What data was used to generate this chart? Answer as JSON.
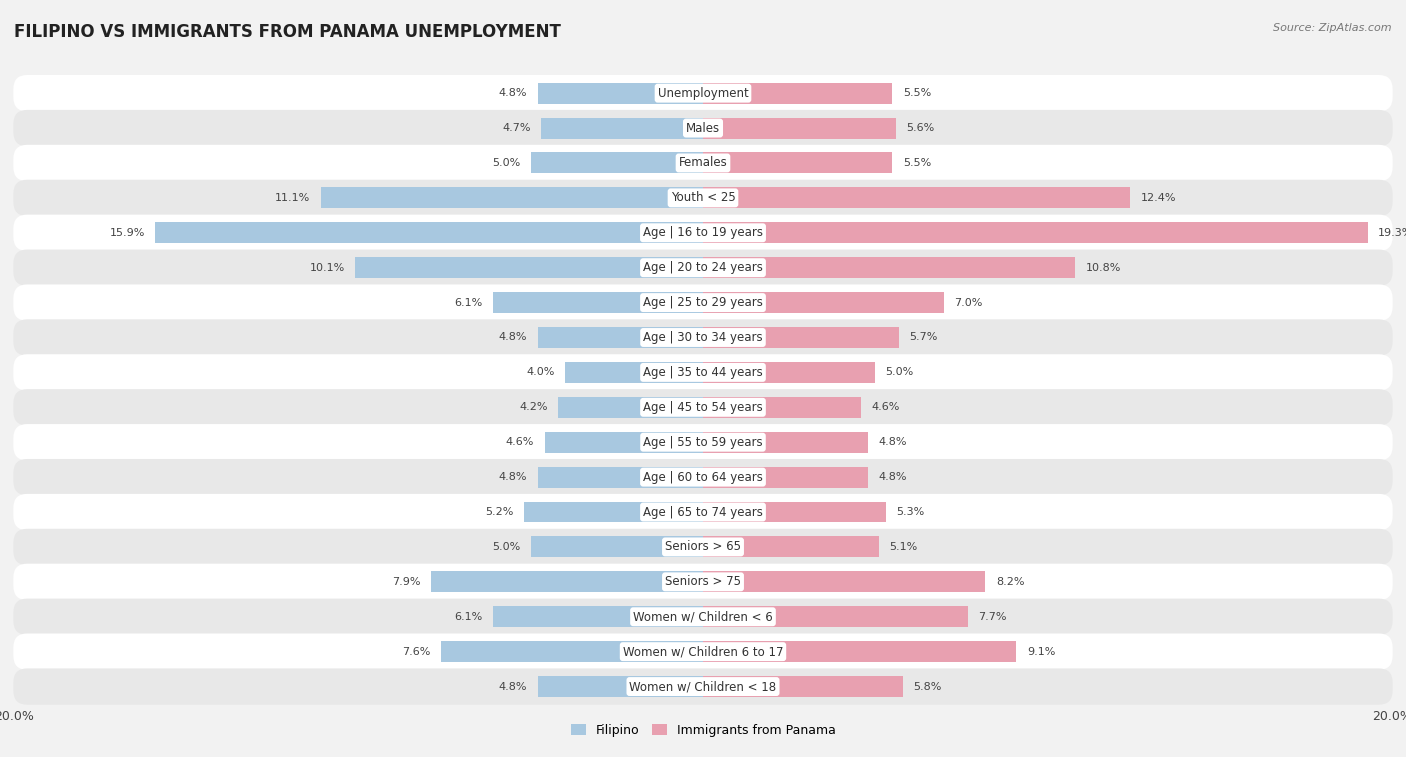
{
  "title": "FILIPINO VS IMMIGRANTS FROM PANAMA UNEMPLOYMENT",
  "source": "Source: ZipAtlas.com",
  "categories": [
    "Unemployment",
    "Males",
    "Females",
    "Youth < 25",
    "Age | 16 to 19 years",
    "Age | 20 to 24 years",
    "Age | 25 to 29 years",
    "Age | 30 to 34 years",
    "Age | 35 to 44 years",
    "Age | 45 to 54 years",
    "Age | 55 to 59 years",
    "Age | 60 to 64 years",
    "Age | 65 to 74 years",
    "Seniors > 65",
    "Seniors > 75",
    "Women w/ Children < 6",
    "Women w/ Children 6 to 17",
    "Women w/ Children < 18"
  ],
  "filipino_values": [
    4.8,
    4.7,
    5.0,
    11.1,
    15.9,
    10.1,
    6.1,
    4.8,
    4.0,
    4.2,
    4.6,
    4.8,
    5.2,
    5.0,
    7.9,
    6.1,
    7.6,
    4.8
  ],
  "panama_values": [
    5.5,
    5.6,
    5.5,
    12.4,
    19.3,
    10.8,
    7.0,
    5.7,
    5.0,
    4.6,
    4.8,
    4.8,
    5.3,
    5.1,
    8.2,
    7.7,
    9.1,
    5.8
  ],
  "filipino_color": "#a8c8e0",
  "panama_color": "#e8a0b0",
  "filipino_label": "Filipino",
  "panama_label": "Immigrants from Panama",
  "xlim": 20.0,
  "background_color": "#f2f2f2",
  "row_color_odd": "#ffffff",
  "row_color_even": "#e8e8e8",
  "bar_height": 0.6,
  "title_fontsize": 12,
  "label_fontsize": 8.5,
  "value_fontsize": 8.0
}
